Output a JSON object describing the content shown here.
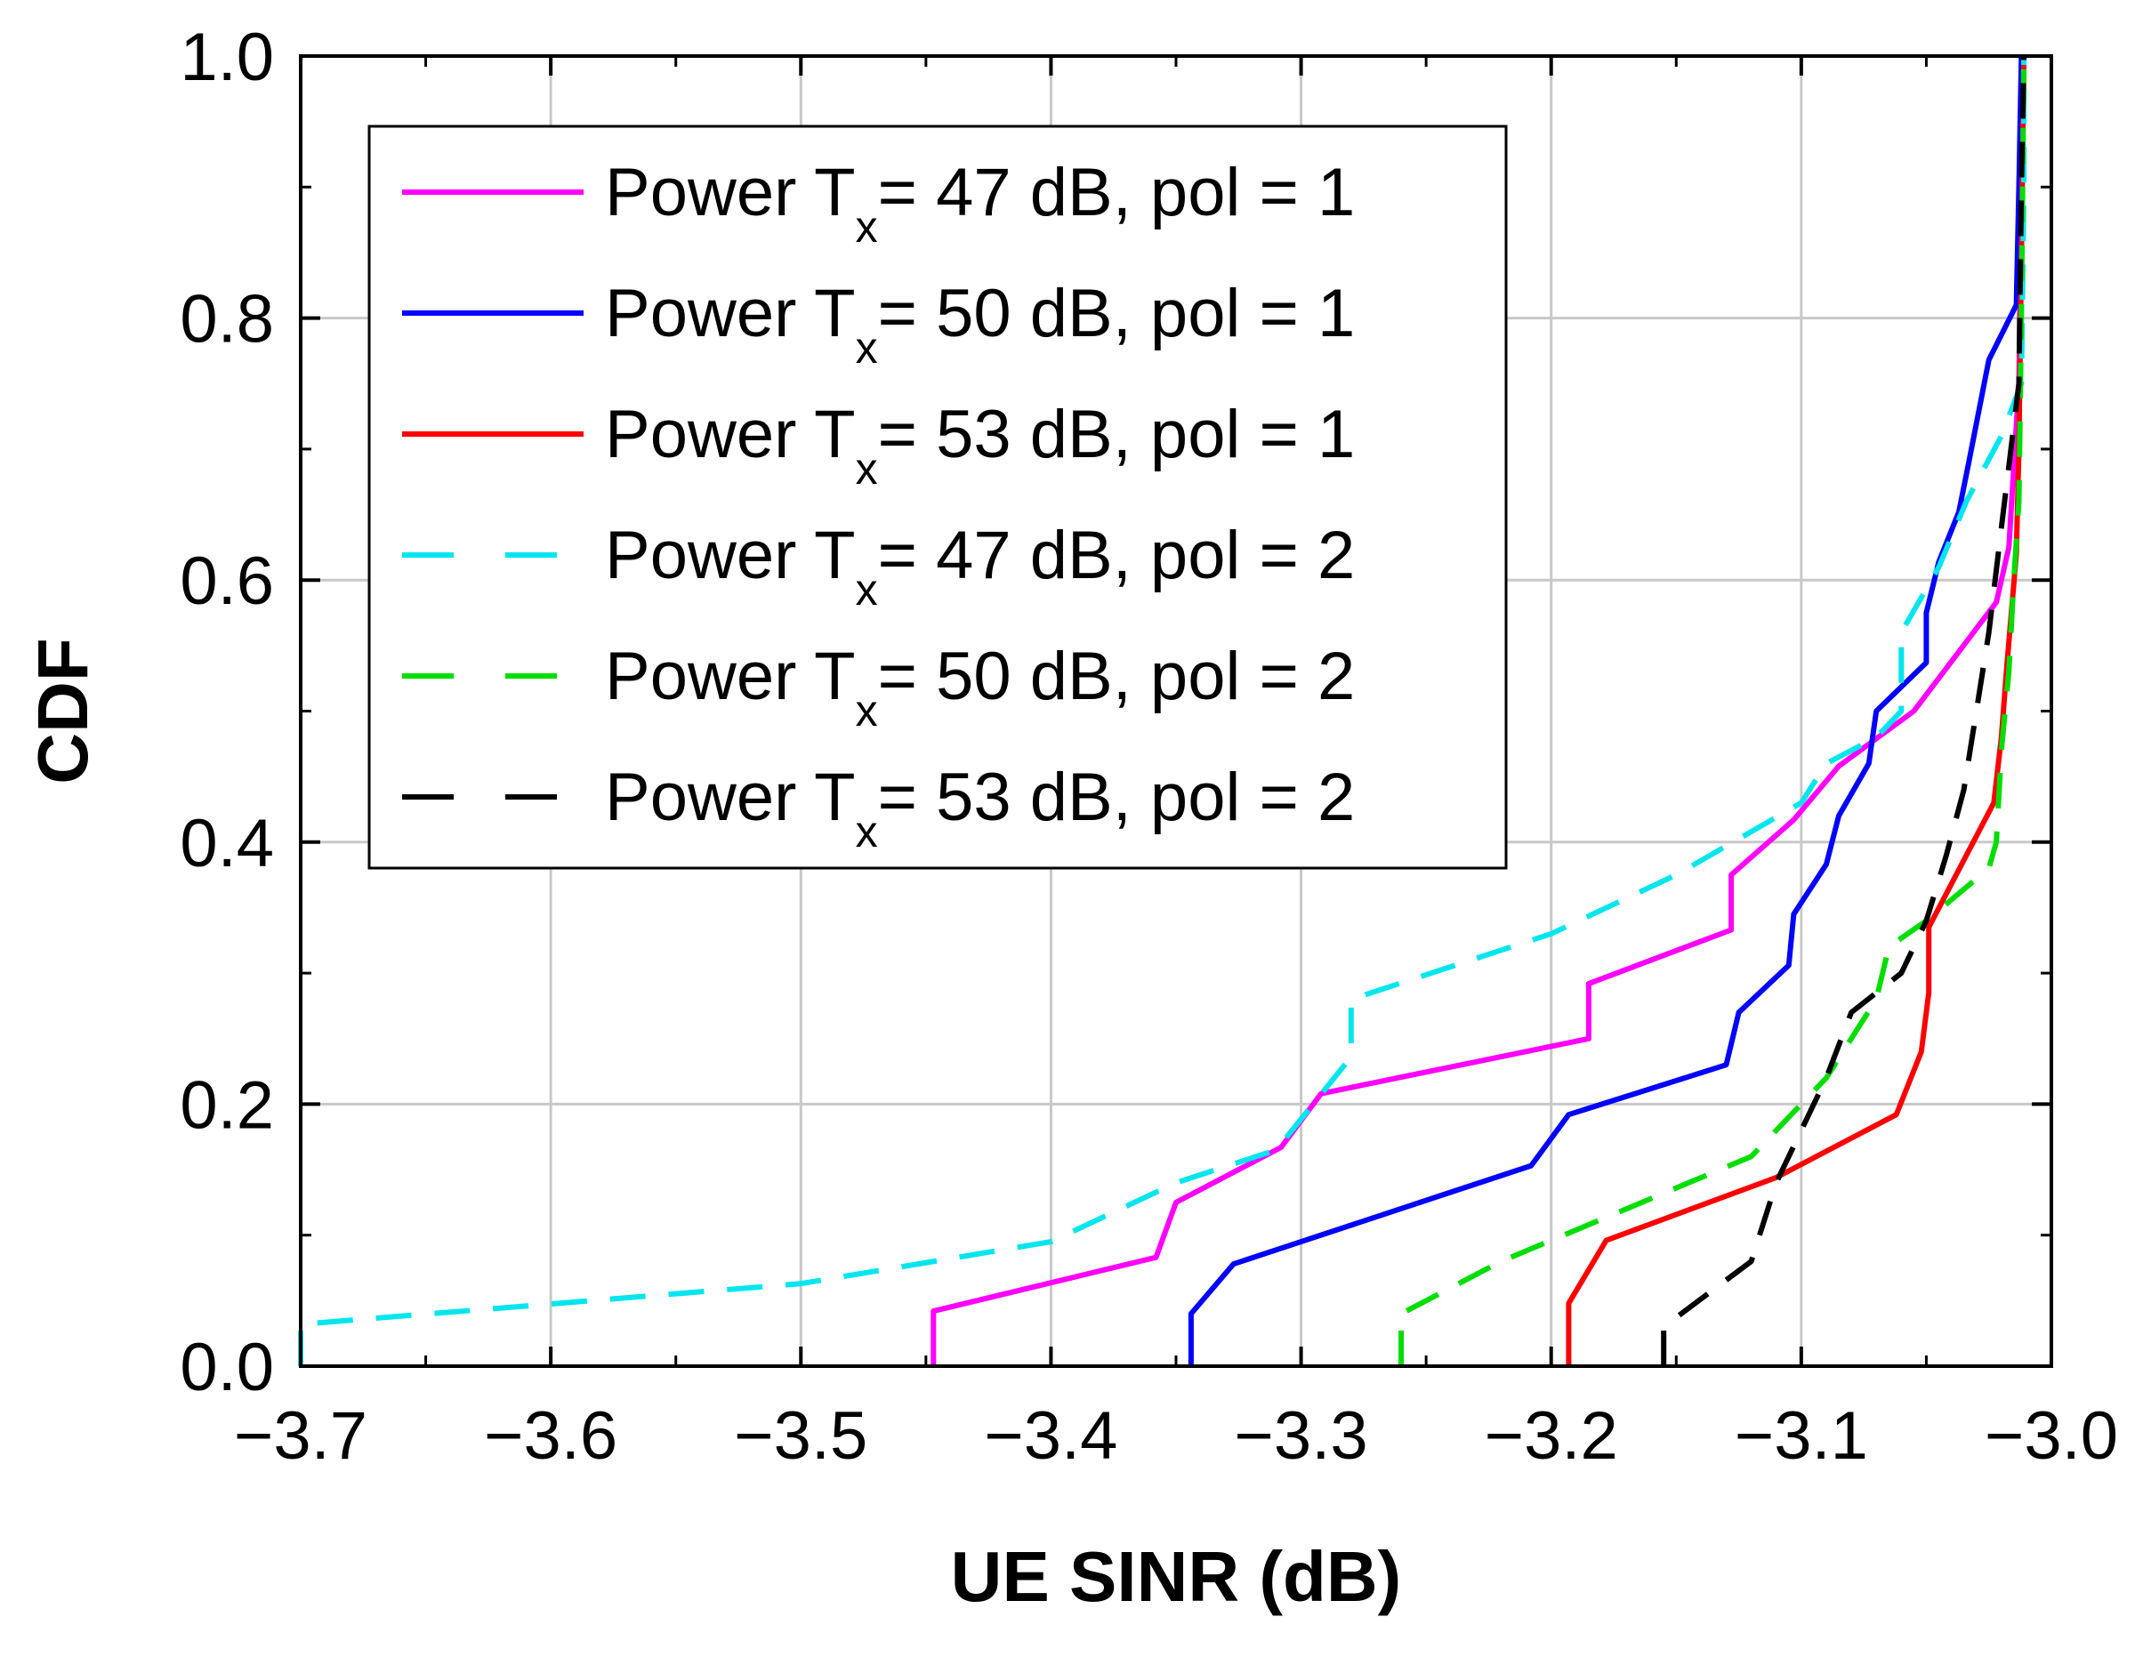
{
  "chart_data": {
    "type": "line",
    "title": "",
    "xlabel": "UE SINR (dB)",
    "ylabel": "CDF",
    "xlim": [
      -3.7,
      -3.0
    ],
    "ylim": [
      0.0,
      1.0
    ],
    "x_ticks": [
      "−3.7",
      "−3.6",
      "−3.5",
      "−3.4",
      "−3.3",
      "−3.2",
      "−3.1",
      "−3.0"
    ],
    "y_ticks": [
      "0.0",
      "0.2",
      "0.4",
      "0.6",
      "0.8",
      "1.0"
    ],
    "grid": true,
    "legend_position": "top-left",
    "series": [
      {
        "name": "Power Tx= 47 dB, pol = 1",
        "legend_prefix": "Power T",
        "legend_sub": "x",
        "legend_suffix": "= 47 dB, pol = 1",
        "color": "#ff00ff",
        "dash": "solid",
        "points": [
          [
            -3.447,
            0.0
          ],
          [
            -3.447,
            0.042
          ],
          [
            -3.358,
            0.083
          ],
          [
            -3.35,
            0.125
          ],
          [
            -3.308,
            0.167
          ],
          [
            -3.292,
            0.208
          ],
          [
            -3.185,
            0.25
          ],
          [
            -3.185,
            0.292
          ],
          [
            -3.128,
            0.333
          ],
          [
            -3.128,
            0.375
          ],
          [
            -3.103,
            0.417
          ],
          [
            -3.085,
            0.458
          ],
          [
            -3.055,
            0.5
          ],
          [
            -3.022,
            0.583
          ],
          [
            -3.017,
            0.625
          ],
          [
            -3.013,
            0.75
          ],
          [
            -3.012,
            0.9
          ],
          [
            -3.011,
            1.0
          ]
        ]
      },
      {
        "name": "Power Tx= 50 dB, pol = 1",
        "legend_prefix": "Power T",
        "legend_sub": "x",
        "legend_suffix": "= 50 dB, pol = 1",
        "color": "#0000ff",
        "dash": "solid",
        "points": [
          [
            -3.344,
            0.0
          ],
          [
            -3.344,
            0.04
          ],
          [
            -3.327,
            0.078
          ],
          [
            -3.208,
            0.153
          ],
          [
            -3.193,
            0.192
          ],
          [
            -3.13,
            0.23
          ],
          [
            -3.125,
            0.27
          ],
          [
            -3.105,
            0.306
          ],
          [
            -3.103,
            0.345
          ],
          [
            -3.09,
            0.383
          ],
          [
            -3.085,
            0.42
          ],
          [
            -3.073,
            0.46
          ],
          [
            -3.07,
            0.5
          ],
          [
            -3.05,
            0.537
          ],
          [
            -3.05,
            0.575
          ],
          [
            -3.045,
            0.614
          ],
          [
            -3.037,
            0.652
          ],
          [
            -3.033,
            0.69
          ],
          [
            -3.025,
            0.768
          ],
          [
            -3.014,
            0.81
          ],
          [
            -3.013,
            0.9
          ],
          [
            -3.012,
            1.0
          ]
        ]
      },
      {
        "name": "Power Tx= 53 dB, pol = 1",
        "legend_prefix": "Power T",
        "legend_sub": "x",
        "legend_suffix": "= 53 dB, pol = 1",
        "color": "#ff0000",
        "dash": "solid",
        "points": [
          [
            -3.193,
            0.0
          ],
          [
            -3.193,
            0.048
          ],
          [
            -3.178,
            0.096
          ],
          [
            -3.11,
            0.144
          ],
          [
            -3.062,
            0.192
          ],
          [
            -3.052,
            0.24
          ],
          [
            -3.049,
            0.285
          ],
          [
            -3.049,
            0.335
          ],
          [
            -3.023,
            0.43
          ],
          [
            -3.02,
            0.48
          ],
          [
            -3.018,
            0.53
          ],
          [
            -3.016,
            0.575
          ],
          [
            -3.014,
            0.62
          ],
          [
            -3.013,
            0.7
          ],
          [
            -3.012,
            0.85
          ],
          [
            -3.011,
            1.0
          ]
        ]
      },
      {
        "name": "Power Tx= 47 dB, pol = 2",
        "legend_prefix": "Power T",
        "legend_sub": "x",
        "legend_suffix": "= 47 dB, pol = 2",
        "color": "#00e5ee",
        "dash": "dashed",
        "points": [
          [
            -3.7,
            0.0
          ],
          [
            -3.7,
            0.032
          ],
          [
            -3.5,
            0.063
          ],
          [
            -3.4,
            0.095
          ],
          [
            -3.35,
            0.14
          ],
          [
            -3.31,
            0.165
          ],
          [
            -3.28,
            0.236
          ],
          [
            -3.28,
            0.28
          ],
          [
            -3.2,
            0.33
          ],
          [
            -3.15,
            0.375
          ],
          [
            -3.1,
            0.43
          ],
          [
            -3.09,
            0.46
          ],
          [
            -3.07,
            0.48
          ],
          [
            -3.06,
            0.5
          ],
          [
            -3.06,
            0.56
          ],
          [
            -3.045,
            0.61
          ],
          [
            -3.034,
            0.66
          ],
          [
            -3.02,
            0.71
          ],
          [
            -3.012,
            0.75
          ],
          [
            -3.011,
            0.9
          ],
          [
            -3.011,
            1.0
          ]
        ]
      },
      {
        "name": "Power Tx= 50 dB, pol = 2",
        "legend_prefix": "Power T",
        "legend_sub": "x",
        "legend_suffix": "= 50 dB, pol = 2",
        "color": "#00dd00",
        "dash": "dashed",
        "points": [
          [
            -3.26,
            0.0
          ],
          [
            -3.26,
            0.04
          ],
          [
            -3.22,
            0.08
          ],
          [
            -3.12,
            0.16
          ],
          [
            -3.09,
            0.22
          ],
          [
            -3.07,
            0.28
          ],
          [
            -3.065,
            0.32
          ],
          [
            -3.05,
            0.34
          ],
          [
            -3.025,
            0.38
          ],
          [
            -3.022,
            0.4
          ],
          [
            -3.02,
            0.47
          ],
          [
            -3.017,
            0.53
          ],
          [
            -3.015,
            0.6
          ],
          [
            -3.013,
            0.66
          ],
          [
            -3.012,
            0.8
          ],
          [
            -3.011,
            1.0
          ]
        ]
      },
      {
        "name": "Power Tx= 53 dB, pol = 2",
        "legend_prefix": "Power T",
        "legend_sub": "x",
        "legend_suffix": "= 53 dB, pol = 2",
        "color": "#000000",
        "dash": "dashed",
        "points": [
          [
            -3.155,
            0.0
          ],
          [
            -3.155,
            0.03
          ],
          [
            -3.12,
            0.08
          ],
          [
            -3.11,
            0.14
          ],
          [
            -3.09,
            0.22
          ],
          [
            -3.08,
            0.27
          ],
          [
            -3.06,
            0.3
          ],
          [
            -3.05,
            0.34
          ],
          [
            -3.042,
            0.39
          ],
          [
            -3.035,
            0.44
          ],
          [
            -3.03,
            0.5
          ],
          [
            -3.025,
            0.56
          ],
          [
            -3.02,
            0.64
          ],
          [
            -3.013,
            0.75
          ],
          [
            -3.012,
            0.9
          ],
          [
            -3.011,
            1.0
          ]
        ]
      }
    ]
  }
}
